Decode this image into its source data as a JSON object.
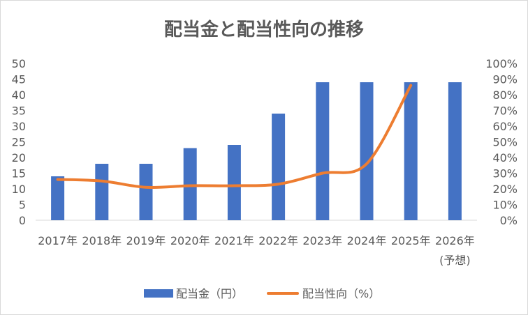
{
  "chart_data": {
    "type": "bar+line",
    "title": "配当金と配当性向の推移",
    "categories": [
      "2017年",
      "2018年",
      "2019年",
      "2020年",
      "2021年",
      "2022年",
      "2023年",
      "2024年",
      "2025年",
      "2026年"
    ],
    "category_note": "(予想)",
    "series": [
      {
        "name": "配当金（円）",
        "type": "bar",
        "axis": "left",
        "color": "#4472C4",
        "values": [
          14,
          18,
          18,
          23,
          24,
          34,
          44,
          44,
          44,
          44
        ]
      },
      {
        "name": "配当性向（%）",
        "type": "line",
        "axis": "right",
        "color": "#ED7D31",
        "values": [
          26,
          25,
          21,
          22,
          22,
          23,
          30,
          36,
          86,
          null
        ]
      }
    ],
    "y_left": {
      "min": 0,
      "max": 50,
      "ticks": [
        "0",
        "5",
        "10",
        "15",
        "20",
        "25",
        "30",
        "35",
        "40",
        "45",
        "50"
      ]
    },
    "y_right": {
      "min": 0,
      "max": 100,
      "ticks": [
        "0%",
        "10%",
        "20%",
        "30%",
        "40%",
        "50%",
        "60%",
        "70%",
        "80%",
        "90%",
        "100%"
      ]
    },
    "grid": false,
    "legend": "bottom"
  }
}
